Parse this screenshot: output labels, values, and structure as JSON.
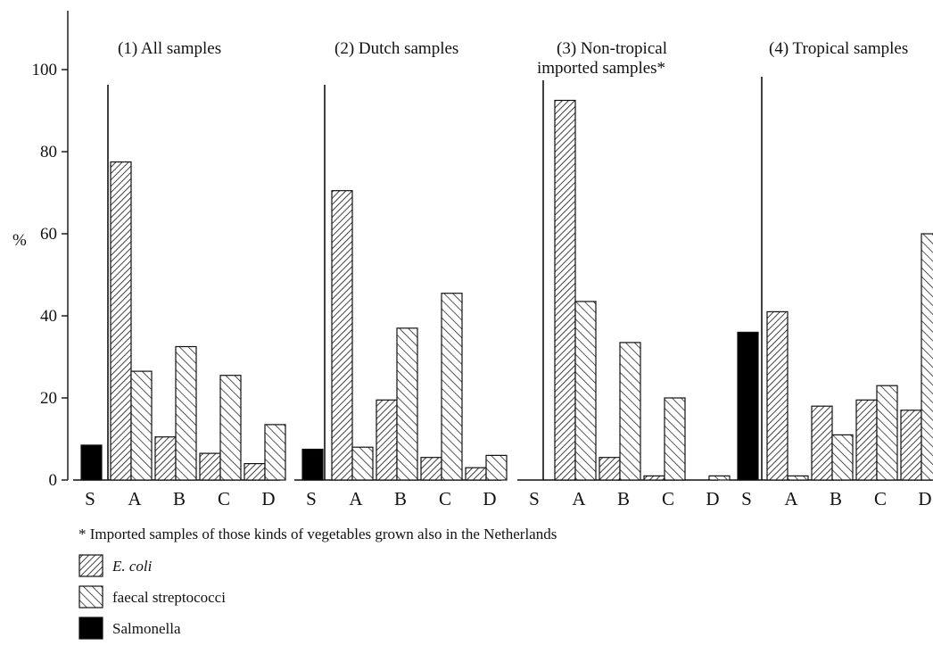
{
  "chart_data": {
    "type": "bar",
    "ylabel": "%",
    "ylim": [
      0,
      100
    ],
    "yticks": [
      0,
      20,
      40,
      60,
      80,
      100
    ],
    "grid": false,
    "legend_placement": "bottom-left",
    "categories": [
      "S",
      "A",
      "B",
      "C",
      "D"
    ],
    "series": [
      {
        "name": "E. coli",
        "key": "ecoli",
        "pattern": "hatch-dense",
        "color": "#000000"
      },
      {
        "name": "faecal streptococci",
        "key": "strep",
        "pattern": "hatch-wide",
        "color": "#000000"
      },
      {
        "name": "Salmonella",
        "key": "salm",
        "pattern": "solid",
        "color": "#000000"
      }
    ],
    "panels": [
      {
        "title_lines": [
          "(1) All samples"
        ],
        "values": {
          "S": {
            "salm": 8.5
          },
          "A": {
            "ecoli": 77.5,
            "strep": 26.5
          },
          "B": {
            "ecoli": 10.5,
            "strep": 32.5
          },
          "C": {
            "ecoli": 6.5,
            "strep": 25.5
          },
          "D": {
            "ecoli": 4,
            "strep": 13.5
          }
        }
      },
      {
        "title_lines": [
          "(2) Dutch samples"
        ],
        "values": {
          "S": {
            "salm": 7.5
          },
          "A": {
            "ecoli": 70.5,
            "strep": 8
          },
          "B": {
            "ecoli": 19.5,
            "strep": 37
          },
          "C": {
            "ecoli": 5.5,
            "strep": 45.5
          },
          "D": {
            "ecoli": 3,
            "strep": 6
          }
        }
      },
      {
        "title_lines": [
          "(3) Non-tropical",
          "imported samples*"
        ],
        "values": {
          "S": {
            "salm": 0
          },
          "A": {
            "ecoli": 92.5,
            "strep": 43.5
          },
          "B": {
            "ecoli": 5.5,
            "strep": 33.5
          },
          "C": {
            "ecoli": 1,
            "strep": 20
          },
          "D": {
            "ecoli": 0,
            "strep": 1
          }
        }
      },
      {
        "title_lines": [
          "(4) Tropical samples"
        ],
        "values": {
          "S": {
            "salm": 36
          },
          "A": {
            "ecoli": 41,
            "strep": 1
          },
          "B": {
            "ecoli": 18,
            "strep": 11
          },
          "C": {
            "ecoli": 19.5,
            "strep": 23
          },
          "D": {
            "ecoli": 17,
            "strep": 60
          }
        }
      }
    ],
    "footnote": "* Imported samples of those kinds of vegetables grown also in the Netherlands"
  }
}
